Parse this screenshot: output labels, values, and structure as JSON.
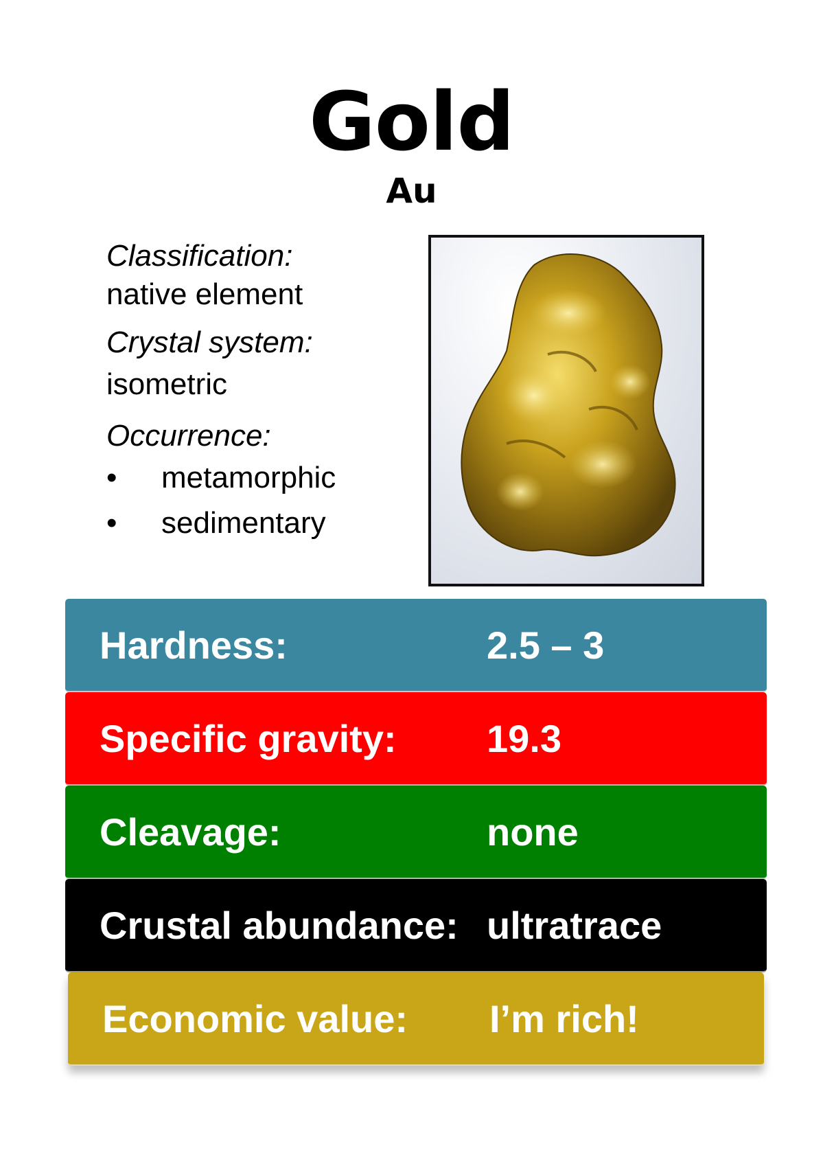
{
  "mineral": {
    "name": "Gold",
    "formula": "Au"
  },
  "info": {
    "classification_label": "Classification:",
    "classification_value": "native element",
    "crystal_label": "Crystal system:",
    "crystal_value": "isometric",
    "occurrence_label": "Occurrence:",
    "bullet": "•",
    "occurrence": [
      "metamorphic",
      "sedimentary"
    ]
  },
  "photo": {
    "icon": "gold-nugget-image",
    "colors": {
      "frame": "#111111",
      "gold": "#c9a21e",
      "backdrop": "#e9ecf2"
    }
  },
  "properties": [
    {
      "label": "Hardness:",
      "value": "2.5 – 3",
      "color": "#3b87a0"
    },
    {
      "label": "Specific gravity:",
      "value": "19.3",
      "color": "#ff0000"
    },
    {
      "label": "Cleavage:",
      "value": "none",
      "color": "#008000"
    },
    {
      "label": "Crustal abundance:",
      "value": "ultratrace",
      "color": "#000000"
    },
    {
      "label": "Economic value:",
      "value": "I’m rich!",
      "color": "#c9a617"
    }
  ]
}
